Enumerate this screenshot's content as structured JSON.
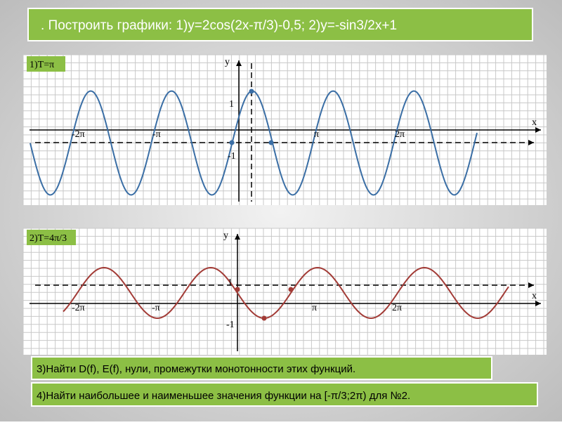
{
  "header": {
    "title": ". Построить графики: 1)y=2cos(2x-π/3)-0,5;  2)y=-sin3/2x+1"
  },
  "graphs": [
    {
      "label": "1)T=π",
      "axis_y": "y",
      "axis_x": "x",
      "tick_y_pos": "1",
      "tick_y_neg": "-1",
      "tick_x": [
        "-2π",
        "-π",
        "π",
        "2π"
      ]
    },
    {
      "label": "2)T=4π/3",
      "axis_y": "y",
      "axis_x": "x",
      "tick_y_pos": "1",
      "tick_y_neg": "-1",
      "tick_x": [
        "-2π",
        "-π",
        "π",
        "2π"
      ]
    }
  ],
  "tasks": [
    "3)Найти D(f), E(f), нули, промежутки монотонности этих функций.",
    "4)Найти наибольшее и наименьшее значения функции на [-π/3;2π) для №2."
  ]
}
